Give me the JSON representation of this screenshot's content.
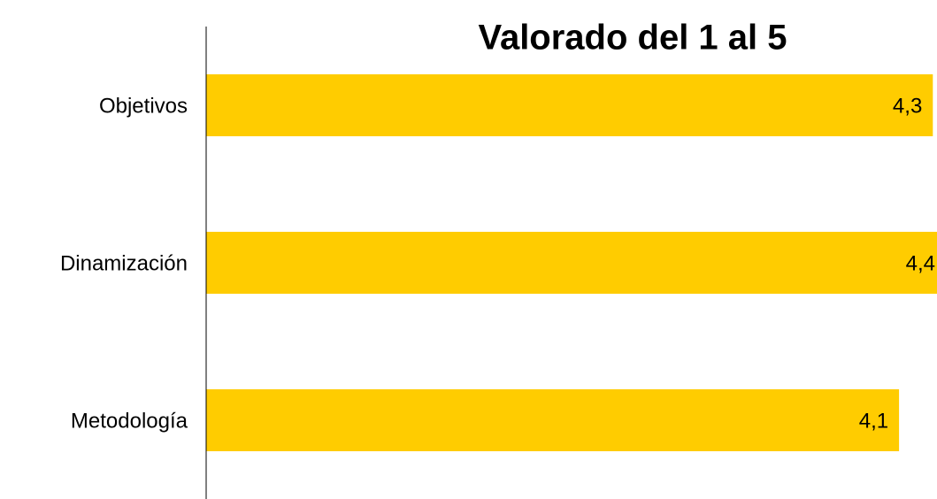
{
  "chart_data": {
    "type": "hbar",
    "title": "Valorado del 1 al 5",
    "categories": [
      "Objetivos",
      "Dinamización",
      "Metodología"
    ],
    "values": [
      4.3,
      4.4,
      4.1
    ],
    "value_labels": [
      "4,3",
      "4,4",
      "4,1"
    ],
    "color": "#ffcc00",
    "xlim": [
      0,
      5
    ]
  }
}
